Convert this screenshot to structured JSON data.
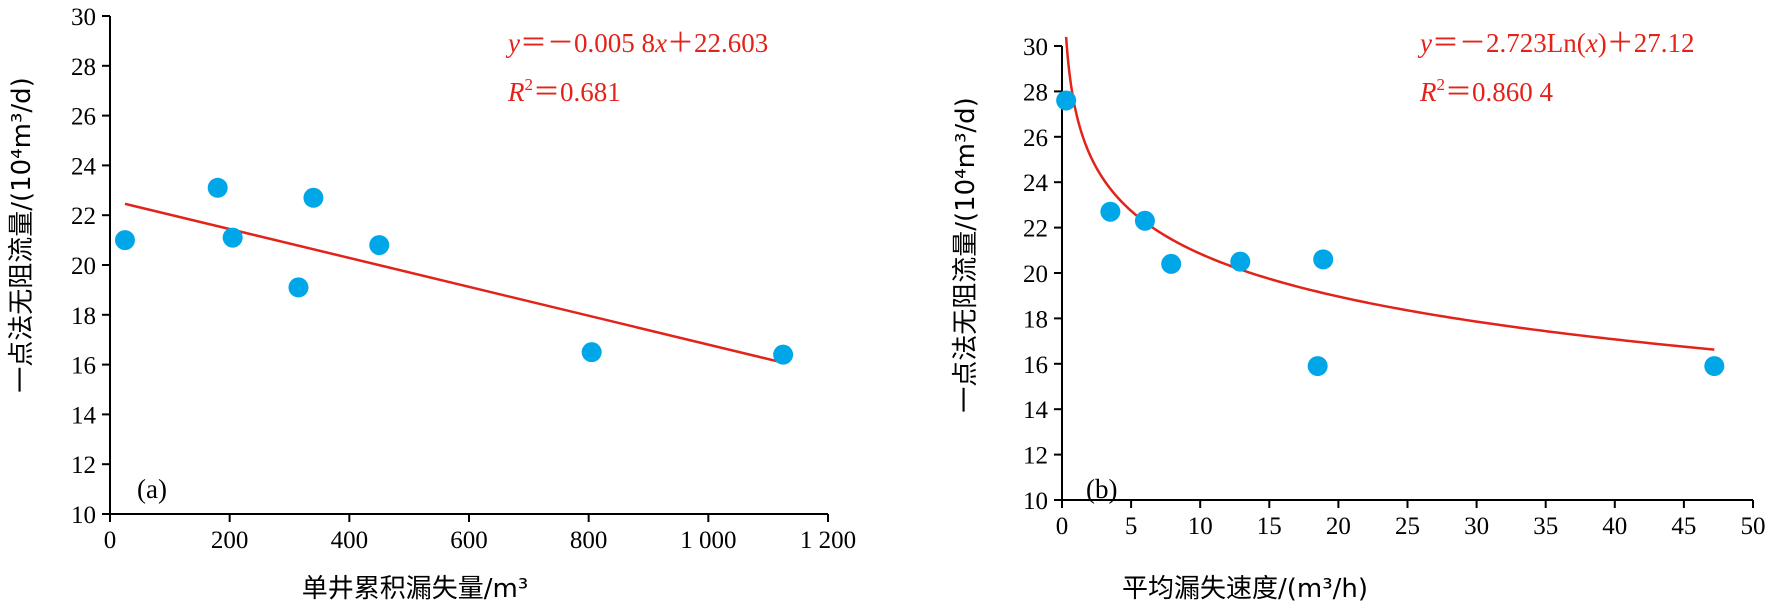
{
  "chart_data": [
    {
      "type": "scatter",
      "panel_label": "(a)",
      "xlabel": "单井累积漏失量/m³",
      "ylabel": "一点法无阻流量/(10⁴m³/d)",
      "xlim": [
        0,
        1200
      ],
      "ylim": [
        10,
        30
      ],
      "xticks": [
        0,
        200,
        400,
        600,
        800,
        1000,
        1200
      ],
      "xtick_labels": [
        "0",
        "200",
        "400",
        "600",
        "800",
        "1 000",
        "1 200"
      ],
      "yticks": [
        10,
        12,
        14,
        16,
        18,
        20,
        22,
        24,
        26,
        28,
        30
      ],
      "ytick_labels": [
        "10",
        "12",
        "14",
        "16",
        "18",
        "20",
        "22",
        "24",
        "26",
        "28",
        "30"
      ],
      "points": {
        "x": [
          25,
          180,
          205,
          315,
          340,
          450,
          805,
          1125
        ],
        "y": [
          21.0,
          23.1,
          21.1,
          19.1,
          22.7,
          20.8,
          16.5,
          16.4
        ]
      },
      "fit": {
        "model": "linear",
        "slope": -0.0058,
        "intercept": 22.603,
        "x_range": [
          25,
          1125
        ]
      },
      "equation": {
        "y_var": "y",
        "eq_sign": "＝－0.005 8",
        "x_var": "x",
        "rest": "＋22.603"
      },
      "r2": {
        "var": "R",
        "sup": "2",
        "value": "＝0.681"
      },
      "colors": {
        "points": "#00a7e8",
        "fit": "#e2231a"
      }
    },
    {
      "type": "scatter",
      "panel_label": "(b)",
      "xlabel": "平均漏失速度/(m³/h)",
      "ylabel": "一点法无阻流量/(10⁴m³/d)",
      "xlim": [
        0,
        50
      ],
      "ylim": [
        10,
        30
      ],
      "xticks": [
        0,
        5,
        10,
        15,
        20,
        25,
        30,
        35,
        40,
        45,
        50
      ],
      "xtick_labels": [
        "0",
        "5",
        "10",
        "15",
        "20",
        "25",
        "30",
        "35",
        "40",
        "45",
        "50"
      ],
      "yticks": [
        10,
        12,
        14,
        16,
        18,
        20,
        22,
        24,
        26,
        28,
        30
      ],
      "ytick_labels": [
        "10",
        "12",
        "14",
        "16",
        "18",
        "20",
        "22",
        "24",
        "26",
        "28",
        "30"
      ],
      "points": {
        "x": [
          0.3,
          3.5,
          6.0,
          7.9,
          12.9,
          18.5,
          18.9,
          47.2
        ],
        "y": [
          27.6,
          22.7,
          22.3,
          20.4,
          20.5,
          15.9,
          20.6,
          15.9
        ]
      },
      "fit": {
        "model": "log",
        "a": -2.723,
        "b": 27.12,
        "x_range": [
          0.3,
          47.2
        ]
      },
      "equation": {
        "y_var": "y",
        "eq_sign": "＝－2.723Ln(",
        "x_var": "x",
        "rest": ")＋27.12"
      },
      "r2": {
        "var": "R",
        "sup": "2",
        "value": "＝0.860 4"
      },
      "colors": {
        "points": "#00a7e8",
        "fit": "#e2231a"
      }
    }
  ]
}
